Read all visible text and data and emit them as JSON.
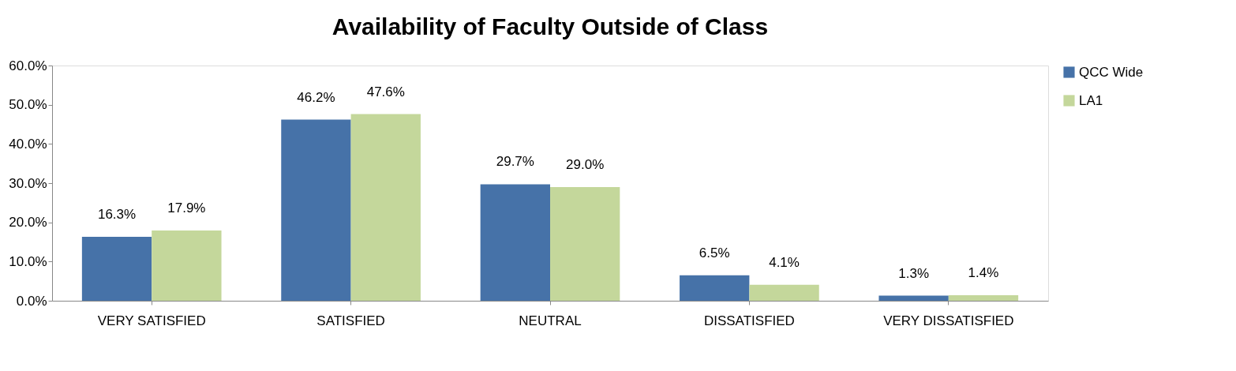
{
  "chart_data": {
    "type": "bar",
    "title": "Availability of Faculty Outside of Class",
    "categories": [
      "VERY SATISFIED",
      "SATISFIED",
      "NEUTRAL",
      "DISSATISFIED",
      "VERY DISSATISFIED"
    ],
    "series": [
      {
        "name": "QCC Wide",
        "color": "#4672a8",
        "values": [
          16.3,
          46.2,
          29.7,
          6.5,
          1.3
        ],
        "value_labels": [
          "16.3%",
          "46.2%",
          "29.7%",
          "6.5%",
          "1.3%"
        ]
      },
      {
        "name": "LA1",
        "color": "#c4d79b",
        "values": [
          17.9,
          47.6,
          29.0,
          4.1,
          1.4
        ],
        "value_labels": [
          "17.9%",
          "47.6%",
          "29.0%",
          "4.1%",
          "1.4%"
        ]
      }
    ],
    "ylim": [
      0,
      60
    ],
    "yticks": [
      {
        "value": 0,
        "label": "0.0%"
      },
      {
        "value": 10,
        "label": "10.0%"
      },
      {
        "value": 20,
        "label": "20.0%"
      },
      {
        "value": 30,
        "label": "30.0%"
      },
      {
        "value": 40,
        "label": "40.0%"
      },
      {
        "value": 50,
        "label": "50.0%"
      },
      {
        "value": 60,
        "label": "60.0%"
      }
    ],
    "grid": false,
    "legend": "right"
  }
}
